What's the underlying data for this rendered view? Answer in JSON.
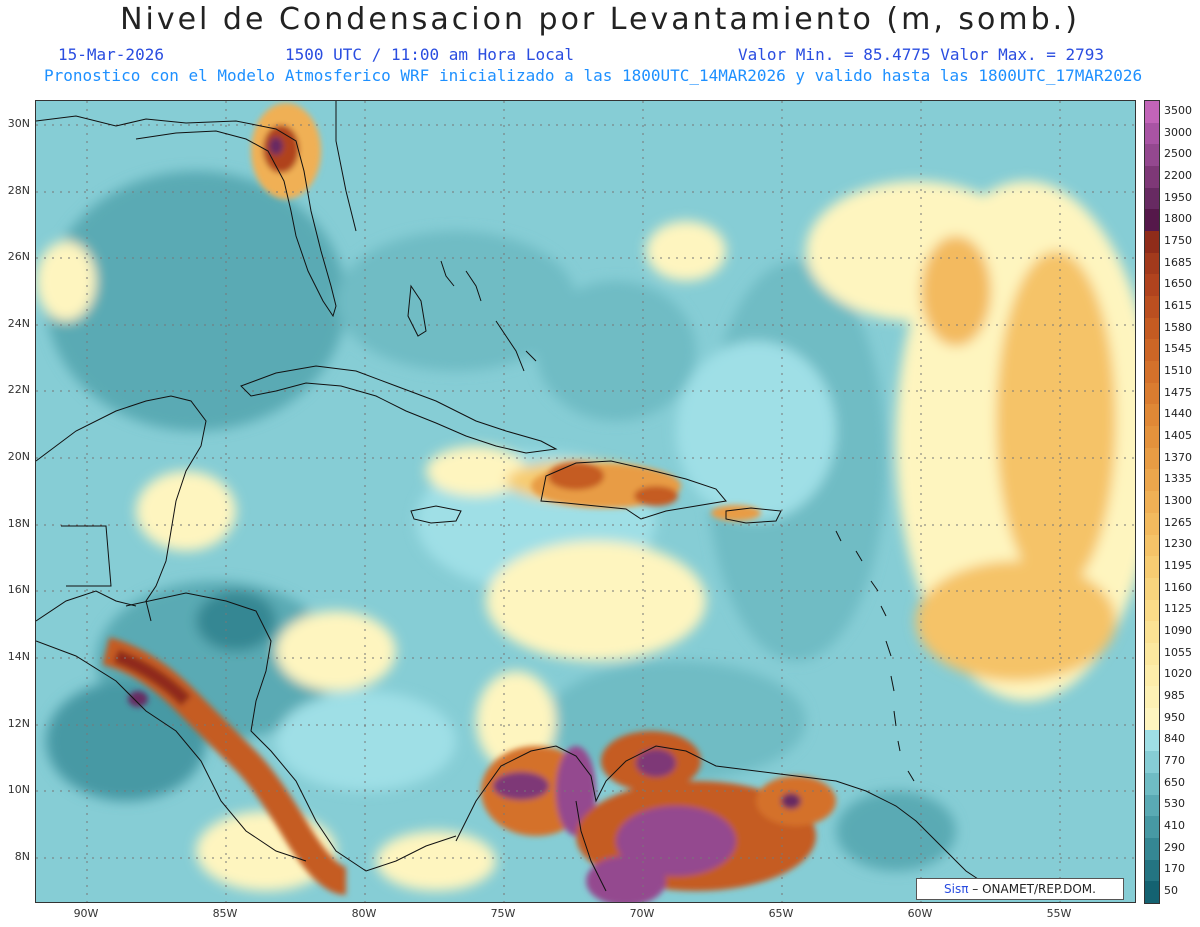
{
  "header": {
    "title": "Nivel de Condensacion por Levantamiento (m, somb.)",
    "date": "15-Mar-2026",
    "time": "1500 UTC / 11:00 am Hora Local",
    "range": "Valor Min. = 85.4775  Valor Max. = 2793",
    "model": "Pronostico con el Modelo Atmosferico WRF inicializado a las 1800UTC_14MAR2026 y valido hasta las  1800UTC_17MAR2026"
  },
  "map": {
    "lat_labels": [
      "30N",
      "28N",
      "26N",
      "24N",
      "22N",
      "20N",
      "18N",
      "16N",
      "14N",
      "12N",
      "10N",
      "8N"
    ],
    "lon_labels": [
      "90W",
      "85W",
      "80W",
      "75W",
      "70W",
      "65W",
      "60W",
      "55W"
    ],
    "lat_range": [
      6.7,
      30.6
    ],
    "lon_range": [
      -91.8,
      -52.3
    ],
    "credit_brand": "Sisπ",
    "credit_org": "– ONAMET/REP.DOM."
  },
  "colorbar": {
    "labels": [
      "3500",
      "3000",
      "2500",
      "2200",
      "1950",
      "1800",
      "1750",
      "1685",
      "1650",
      "1615",
      "1580",
      "1545",
      "1510",
      "1475",
      "1440",
      "1405",
      "1370",
      "1335",
      "1300",
      "1265",
      "1230",
      "1195",
      "1160",
      "1125",
      "1090",
      "1055",
      "1020",
      "985",
      "950",
      "840",
      "770",
      "650",
      "530",
      "410",
      "290",
      "170",
      "50"
    ],
    "colors": [
      "#c264b8",
      "#a954a4",
      "#94488f",
      "#7e3877",
      "#672a62",
      "#55184a",
      "#8f2c1a",
      "#a23a1c",
      "#b0431e",
      "#bb4f20",
      "#c55b22",
      "#cd6626",
      "#d4712b",
      "#da7c30",
      "#e08836",
      "#e4923c",
      "#e89c44",
      "#eca64c",
      "#f0b055",
      "#f3ba5e",
      "#f5c368",
      "#f7cc72",
      "#f8d47d",
      "#fadb88",
      "#fbe294",
      "#fce89f",
      "#fdedaa",
      "#fdf1b4",
      "#fef5bf",
      "#9fdfe6",
      "#86cdd5",
      "#6fbcc4",
      "#5aaab4",
      "#4799a4",
      "#358793",
      "#247482",
      "#146271"
    ]
  }
}
